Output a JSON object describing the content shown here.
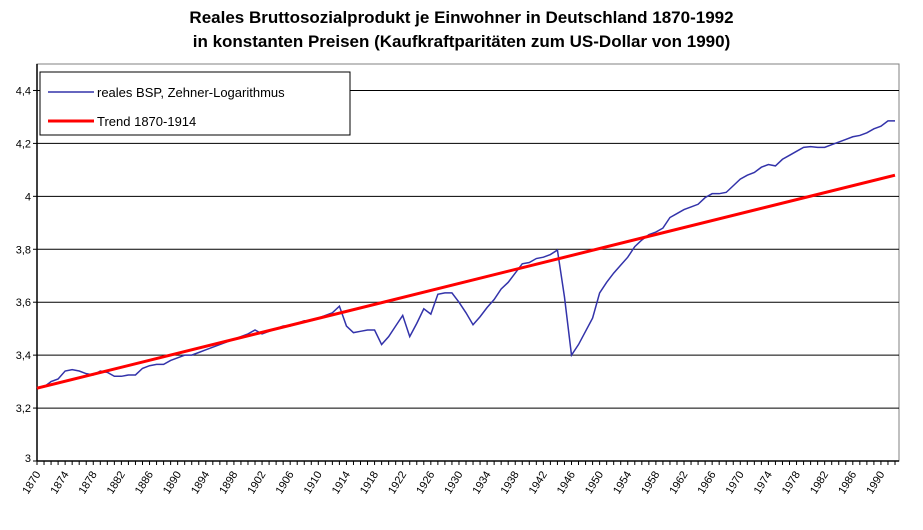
{
  "chart_data": {
    "type": "line",
    "title": [
      "Reales Bruttosozialprodukt je Einwohner in Deutschland 1870-1992",
      "in konstanten Preisen (Kaufkraftparitäten zum US-Dollar von 1990)"
    ],
    "xlabel": "",
    "ylabel": "",
    "xlim": [
      1870,
      1992
    ],
    "ylim": [
      3,
      4.5
    ],
    "yticks": [
      "3",
      "3,2",
      "3,4",
      "3,6",
      "3,8",
      "4",
      "4,2",
      "4,4"
    ],
    "ytick_values": [
      3,
      3.2,
      3.4,
      3.6,
      3.8,
      4,
      4.2,
      4.4
    ],
    "xtick_labels": [
      "1870",
      "1874",
      "1878",
      "1882",
      "1886",
      "1890",
      "1894",
      "1898",
      "1902",
      "1906",
      "1910",
      "1914",
      "1918",
      "1922",
      "1926",
      "1930",
      "1934",
      "1938",
      "1942",
      "1946",
      "1950",
      "1954",
      "1958",
      "1962",
      "1966",
      "1970",
      "1974",
      "1978",
      "1982",
      "1986",
      "1990"
    ],
    "grid": "horizontal",
    "legend_position": "top-left",
    "series": [
      {
        "name": "reales BSP, Zehner-Logarithmus",
        "color": "#3333aa",
        "x_start": 1870,
        "values": [
          3.275,
          3.28,
          3.3,
          3.31,
          3.34,
          3.345,
          3.34,
          3.33,
          3.325,
          3.34,
          3.335,
          3.32,
          3.32,
          3.325,
          3.325,
          3.35,
          3.36,
          3.365,
          3.365,
          3.38,
          3.39,
          3.4,
          3.4,
          3.41,
          3.42,
          3.43,
          3.44,
          3.45,
          3.46,
          3.47,
          3.48,
          3.495,
          3.48,
          3.49,
          3.5,
          3.51,
          3.51,
          3.52,
          3.53,
          3.53,
          3.54,
          3.55,
          3.56,
          3.585,
          3.51,
          3.485,
          3.49,
          3.495,
          3.495,
          3.44,
          3.47,
          3.51,
          3.55,
          3.47,
          3.52,
          3.575,
          3.555,
          3.63,
          3.635,
          3.635,
          3.6,
          3.56,
          3.515,
          3.545,
          3.58,
          3.61,
          3.65,
          3.675,
          3.71,
          3.745,
          3.75,
          3.765,
          3.77,
          3.78,
          3.797,
          3.62,
          3.4,
          3.44,
          3.49,
          3.54,
          3.635,
          3.675,
          3.71,
          3.74,
          3.77,
          3.81,
          3.835,
          3.855,
          3.865,
          3.88,
          3.92,
          3.935,
          3.95,
          3.96,
          3.97,
          3.995,
          4.01,
          4.01,
          4.015,
          4.04,
          4.065,
          4.08,
          4.09,
          4.11,
          4.12,
          4.115,
          4.14,
          4.155,
          4.17,
          4.185,
          4.188,
          4.185,
          4.185,
          4.195,
          4.205,
          4.215,
          4.225,
          4.23,
          4.24,
          4.255,
          4.265,
          4.285,
          4.285
        ]
      },
      {
        "name": "Trend 1870-1914",
        "color": "#ff0000",
        "x": [
          1870,
          1992
        ],
        "values": [
          3.275,
          4.08
        ]
      }
    ]
  }
}
